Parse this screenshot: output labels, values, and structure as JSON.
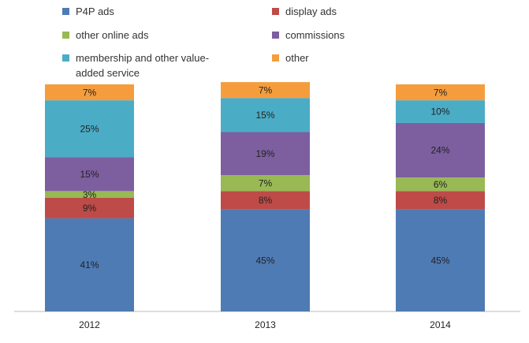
{
  "chart_data": {
    "type": "stacked_bar",
    "categories": [
      "2012",
      "2013",
      "2014"
    ],
    "series": [
      {
        "name": "P4P ads",
        "color": "#4f7bb5",
        "values": [
          41,
          45,
          45
        ],
        "value_labels": [
          "41%",
          "45%",
          "45%"
        ]
      },
      {
        "name": "display ads",
        "color": "#be4b48",
        "values": [
          9,
          8,
          8
        ],
        "value_labels": [
          "9%",
          "8%",
          "8%"
        ]
      },
      {
        "name": "other online ads",
        "color": "#98b954",
        "values": [
          3,
          7,
          6
        ],
        "value_labels": [
          "3%",
          "7%",
          "6%"
        ]
      },
      {
        "name": "commissions",
        "color": "#7d5fa0",
        "values": [
          15,
          19,
          24
        ],
        "value_labels": [
          "15%",
          "19%",
          "24%"
        ]
      },
      {
        "name": "membership and other value-added service",
        "color": "#4bacc6",
        "values": [
          25,
          15,
          10
        ],
        "value_labels": [
          "25%",
          "15%",
          "10%"
        ]
      },
      {
        "name": "other",
        "color": "#f59d3d",
        "values": [
          7,
          7,
          7
        ],
        "value_labels": [
          "7%",
          "7%",
          "7%"
        ]
      }
    ]
  }
}
